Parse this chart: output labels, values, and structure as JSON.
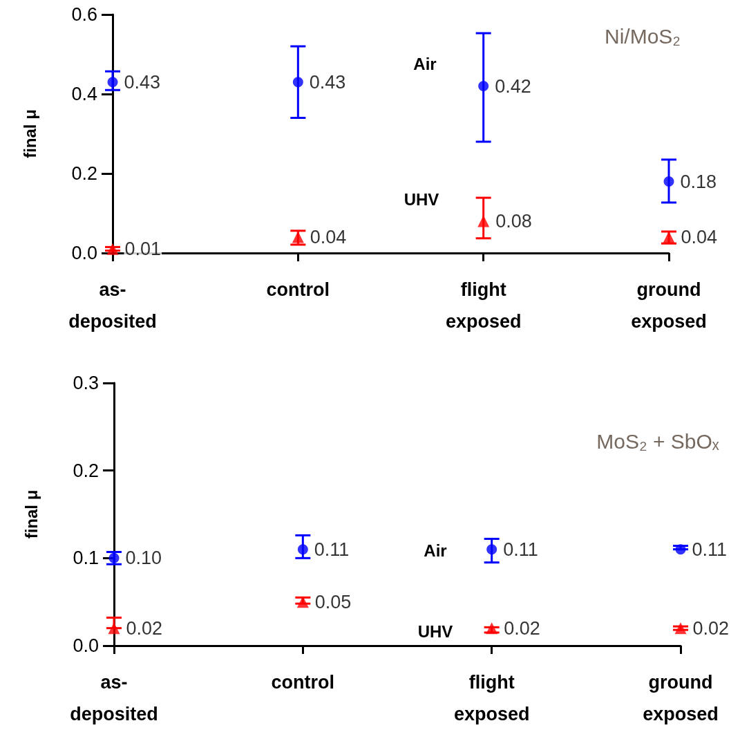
{
  "chart_data": [
    {
      "type": "scatter",
      "title": "Ni/MoS₂",
      "ylabel": "final μ",
      "categories": [
        "as-deposited",
        "control",
        "flight exposed",
        "ground exposed"
      ],
      "ylim": [
        0,
        0.6
      ],
      "yticks": [
        {
          "value": 0,
          "label": "0.0"
        },
        0.2,
        0.4,
        0.6
      ],
      "grid": false,
      "legend": false,
      "series": [
        {
          "name": "Air",
          "color": "#0000ff",
          "marker": "circle",
          "values": [
            0.43,
            0.43,
            0.42,
            0.18
          ],
          "value_labels": [
            "0.43",
            "0.43",
            "0.42",
            "0.18"
          ],
          "errors": [
            [
              0.41,
              0.457
            ],
            [
              0.34,
              0.52
            ],
            [
              0.28,
              0.553
            ],
            [
              0.127,
              0.235
            ]
          ]
        },
        {
          "name": "UHV",
          "color": "#ff0000",
          "marker": "triangle",
          "values": [
            0.01,
            0.04,
            0.08,
            0.04
          ],
          "value_labels": [
            "0.01",
            "0.04",
            "0.08",
            "0.04"
          ],
          "errors": [
            [
              0.006,
              0.015
            ],
            [
              0.021,
              0.056
            ],
            [
              0.037,
              0.139
            ],
            [
              0.024,
              0.054
            ]
          ]
        }
      ]
    },
    {
      "type": "scatter",
      "title": "MoS₂ + SbOₓ",
      "ylabel": "final μ",
      "categories": [
        "as-deposited",
        "control",
        "flight exposed",
        "ground exposed"
      ],
      "ylim": [
        0,
        0.3
      ],
      "yticks": [
        {
          "value": 0,
          "label": "0.0"
        },
        0.1,
        0.2,
        0.3
      ],
      "grid": false,
      "legend": false,
      "series": [
        {
          "name": "Air",
          "color": "#0000ff",
          "marker": "circle",
          "values": [
            0.1,
            0.11,
            0.11,
            0.11
          ],
          "value_labels": [
            "0.10",
            "0.11",
            "0.11",
            "0.11"
          ],
          "errors": [
            [
              0.093,
              0.107
            ],
            [
              0.1,
              0.126
            ],
            [
              0.095,
              0.122
            ],
            [
              0.11,
              0.114
            ]
          ]
        },
        {
          "name": "UHV",
          "color": "#ff0000",
          "marker": "triangle",
          "values": [
            0.02,
            0.05,
            0.02,
            0.02
          ],
          "value_labels": [
            "0.02",
            "0.05",
            "0.02",
            "0.02"
          ],
          "errors": [
            [
              0.02,
              0.032
            ],
            [
              0.048,
              0.055
            ],
            [
              0.015,
              0.021
            ],
            [
              0.018,
              0.022
            ]
          ]
        }
      ]
    }
  ]
}
